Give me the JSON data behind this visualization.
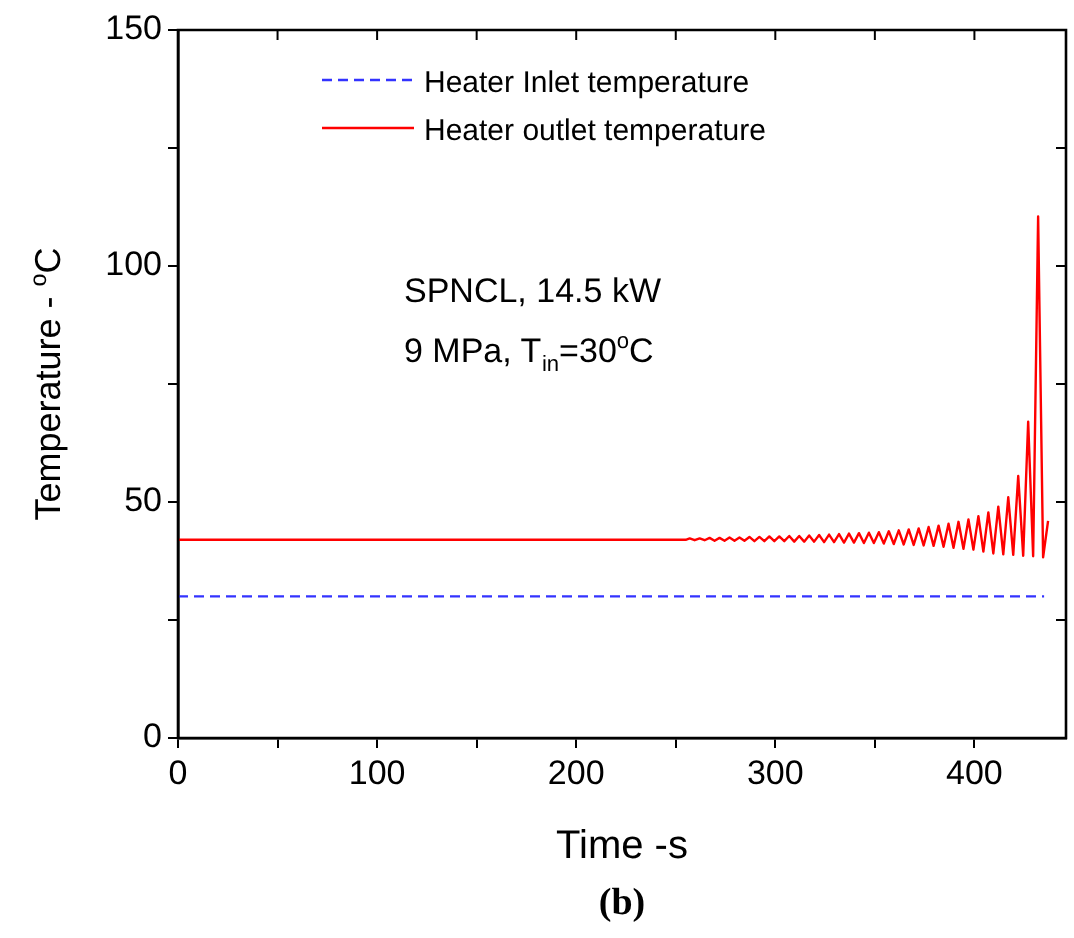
{
  "chart_data": {
    "type": "line",
    "xlabel": "Time -s",
    "ylabel": "Temperature - $^{o}$C",
    "xlim": [
      0,
      446
    ],
    "ylim": [
      0,
      150
    ],
    "xticks": [
      0,
      {
        "value": 50,
        "label": null
      },
      100,
      {
        "value": 150,
        "label": null
      },
      200,
      {
        "value": 250,
        "label": null
      },
      300,
      {
        "value": 350,
        "label": null
      },
      400
    ],
    "yticks": [
      0,
      {
        "value": 25,
        "label": null
      },
      50,
      {
        "value": 75,
        "label": null
      },
      100,
      {
        "value": 125,
        "label": null
      },
      150
    ],
    "grid": false,
    "legend": "top",
    "marker": "none",
    "annotations": [
      "SPNCL, 14.5 kW",
      "9 MPa, T$_{in}$=30$^{o}$C",
      "(b)"
    ],
    "series": [
      {
        "name": "Heater Inlet temperature",
        "color": "#3333ff",
        "line_style": "dashed",
        "x": [
          0,
          435
        ],
        "values": [
          30,
          30
        ]
      },
      {
        "name": "Heater outlet temperature",
        "color": "#ff0000",
        "line_style": "solid",
        "x": [
          0,
          255,
          257,
          259.5,
          262,
          264.5,
          267,
          269.5,
          272,
          274.5,
          277,
          279.5,
          282,
          284.5,
          287,
          289.5,
          292,
          294.5,
          297,
          299.5,
          302,
          304.5,
          307,
          309.5,
          312,
          314.5,
          317,
          319.5,
          322,
          324.5,
          327,
          329.5,
          332,
          334.5,
          337,
          339.5,
          342,
          344.5,
          347,
          349.5,
          352,
          354.5,
          357,
          359.5,
          362,
          364.5,
          367,
          369.5,
          372,
          374.5,
          377,
          379.5,
          382,
          384.5,
          387,
          389.5,
          392,
          394.5,
          397,
          399.5,
          402,
          404.5,
          407,
          409.5,
          412,
          414.5,
          417,
          419.5,
          422,
          424.5,
          427,
          429.5,
          432,
          434.5,
          437
        ],
        "values": [
          42,
          42,
          42.3,
          41.9,
          42.3,
          41.9,
          42.4,
          41.8,
          42.4,
          41.8,
          42.5,
          41.8,
          42.5,
          41.8,
          42.6,
          41.7,
          42.6,
          41.7,
          42.7,
          41.7,
          42.7,
          41.7,
          42.8,
          41.6,
          42.8,
          41.6,
          42.9,
          41.6,
          43.0,
          41.5,
          43.1,
          41.5,
          43.2,
          41.4,
          43.3,
          41.4,
          43.4,
          41.3,
          43.5,
          41.3,
          43.6,
          41.2,
          43.8,
          41.1,
          44.0,
          41.0,
          44.2,
          40.9,
          44.4,
          40.8,
          44.7,
          40.7,
          45.0,
          40.5,
          45.4,
          40.3,
          45.8,
          40.1,
          46.3,
          39.9,
          47,
          39.5,
          47.8,
          39.1,
          49,
          38.9,
          51,
          38.8,
          55.5,
          38.6,
          67,
          38.5,
          110.5,
          38.3,
          46
        ]
      }
    ]
  }
}
